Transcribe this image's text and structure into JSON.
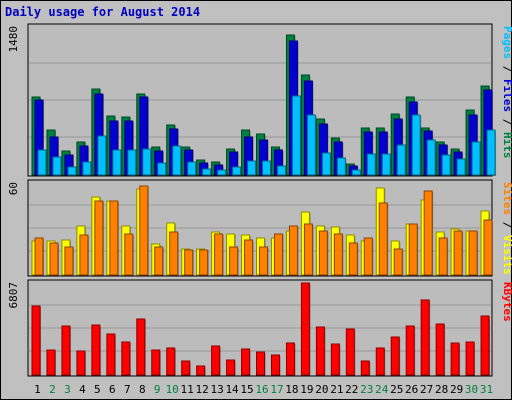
{
  "colors": {
    "background": "#c0c0c0",
    "plot_background": "#bcbcbc",
    "title": "#0000c0",
    "hits": "#008040",
    "files": "#0000d0",
    "pages": "#00c0ff",
    "visits": "#ffff00",
    "sites": "#ff8000",
    "kbytes": "#ff0000",
    "weekend_label": "#008040",
    "weekday_label": "#000000"
  },
  "chart_data": {
    "type": "bar",
    "title": "Daily usage for August 2014",
    "categories": [
      "1",
      "2",
      "3",
      "4",
      "5",
      "6",
      "7",
      "8",
      "9",
      "10",
      "11",
      "12",
      "13",
      "14",
      "15",
      "16",
      "17",
      "18",
      "19",
      "20",
      "21",
      "22",
      "23",
      "24",
      "25",
      "26",
      "27",
      "28",
      "29",
      "30",
      "31"
    ],
    "weekend_days": [
      "2",
      "3",
      "9",
      "10",
      "16",
      "17",
      "23",
      "24",
      "30",
      "31"
    ],
    "panels": [
      {
        "name": "hits-files-pages",
        "scale_max_label": "1480",
        "ylim": [
          0,
          1480
        ],
        "axis_label_parts": [
          {
            "text": "Pages",
            "color": "#00c0ff"
          },
          {
            "text": " / ",
            "color": "#000000"
          },
          {
            "text": "Files",
            "color": "#0000d0"
          },
          {
            "text": " / ",
            "color": "#000000"
          },
          {
            "text": "Hits",
            "color": "#008040"
          }
        ],
        "series": [
          {
            "name": "Hits",
            "color": "#008040",
            "values": [
              780,
              450,
              240,
              330,
              860,
              590,
              580,
              810,
              280,
              500,
              280,
              150,
              130,
              260,
              450,
              410,
              280,
              1400,
              1000,
              560,
              370,
              110,
              470,
              470,
              610,
              780,
              470,
              330,
              260,
              650,
              890
            ]
          },
          {
            "name": "Files",
            "color": "#0000d0",
            "values": [
              750,
              380,
              200,
              290,
              810,
              540,
              540,
              780,
              240,
              460,
              250,
              120,
              100,
              230,
              380,
              350,
              250,
              1340,
              940,
              510,
              330,
              90,
              430,
              430,
              560,
              730,
              440,
              300,
              230,
              600,
              850
            ]
          },
          {
            "name": "Pages",
            "color": "#00c0ff",
            "values": [
              250,
              180,
              80,
              130,
              390,
              250,
              250,
              260,
              120,
              290,
              130,
              60,
              50,
              80,
              140,
              140,
              90,
              790,
              600,
              220,
              170,
              50,
              210,
              210,
              300,
              600,
              350,
              200,
              160,
              330,
              450
            ]
          }
        ]
      },
      {
        "name": "visits-sites",
        "scale_max_label": "60",
        "ylim": [
          0,
          60
        ],
        "axis_label_parts": [
          {
            "text": "Sites",
            "color": "#ff8000"
          },
          {
            "text": " / ",
            "color": "#000000"
          },
          {
            "text": "Visits",
            "color": "#ffff00"
          }
        ],
        "series": [
          {
            "name": "Visits",
            "color": "#ffff00",
            "values": [
              22,
              22,
              23,
              32,
              51,
              48,
              32,
              56,
              20,
              34,
              17,
              17,
              28,
              27,
              26,
              24,
              24,
              29,
              41,
              32,
              31,
              26,
              22,
              57,
              22,
              33,
              49,
              28,
              30,
              29,
              42
            ]
          },
          {
            "name": "Sites",
            "color": "#ff8000",
            "values": [
              24,
              21,
              18,
              26,
              48,
              48,
              27,
              58,
              18,
              28,
              16,
              16,
              27,
              18,
              23,
              18,
              27,
              32,
              33,
              29,
              27,
              21,
              24,
              47,
              17,
              33,
              55,
              24,
              29,
              29,
              36
            ]
          }
        ]
      },
      {
        "name": "kbytes",
        "scale_max_label": "6807",
        "ylim": [
          0,
          6807
        ],
        "axis_label_parts": [
          {
            "text": "KBytes",
            "color": "#ff0000"
          }
        ],
        "series": [
          {
            "name": "KBytes",
            "color": "#ff0000",
            "values": [
              5090,
              1870,
              3610,
              1760,
              3670,
              3060,
              2440,
              4170,
              1820,
              2000,
              1060,
              660,
              2110,
              1130,
              1910,
              1710,
              1450,
              2390,
              6800,
              3540,
              2330,
              3420,
              1000,
              1970,
              2830,
              3590,
              5520,
              3740,
              2380,
              2410,
              4330
            ]
          }
        ]
      }
    ]
  }
}
